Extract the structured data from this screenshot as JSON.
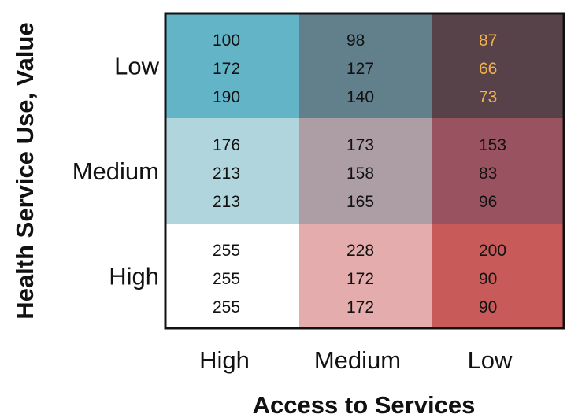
{
  "chart_data": {
    "type": "heatmap",
    "title": "",
    "xlabel": "Access to Services",
    "ylabel": "Health Service Use, Value",
    "x_categories": [
      "High",
      "Medium",
      "Low"
    ],
    "y_categories": [
      "Low",
      "Medium",
      "High"
    ],
    "cells": [
      [
        {
          "values": [
            "100",
            "172",
            "190"
          ],
          "color": "#64b4c8",
          "text_color": "#111111"
        },
        {
          "values": [
            "98",
            "127",
            "140"
          ],
          "color": "#627f8c",
          "text_color": "#111111"
        },
        {
          "values": [
            "87",
            "66",
            "73"
          ],
          "color": "#574249",
          "text_color": "#f0b24a"
        }
      ],
      [
        {
          "values": [
            "176",
            "213",
            "213"
          ],
          "color": "#b0d5dd",
          "text_color": "#111111"
        },
        {
          "values": [
            "173",
            "158",
            "165"
          ],
          "color": "#ad9ea5",
          "text_color": "#111111"
        },
        {
          "values": [
            "153",
            "83",
            "96"
          ],
          "color": "#995360",
          "text_color": "#111111"
        }
      ],
      [
        {
          "values": [
            "255",
            "255",
            "255"
          ],
          "color": "#ffffff",
          "text_color": "#111111"
        },
        {
          "values": [
            "228",
            "172",
            "172"
          ],
          "color": "#e4acac",
          "text_color": "#111111"
        },
        {
          "values": [
            "200",
            "90",
            "90"
          ],
          "color": "#c85a5a",
          "text_color": "#111111"
        }
      ]
    ],
    "grid": false
  }
}
